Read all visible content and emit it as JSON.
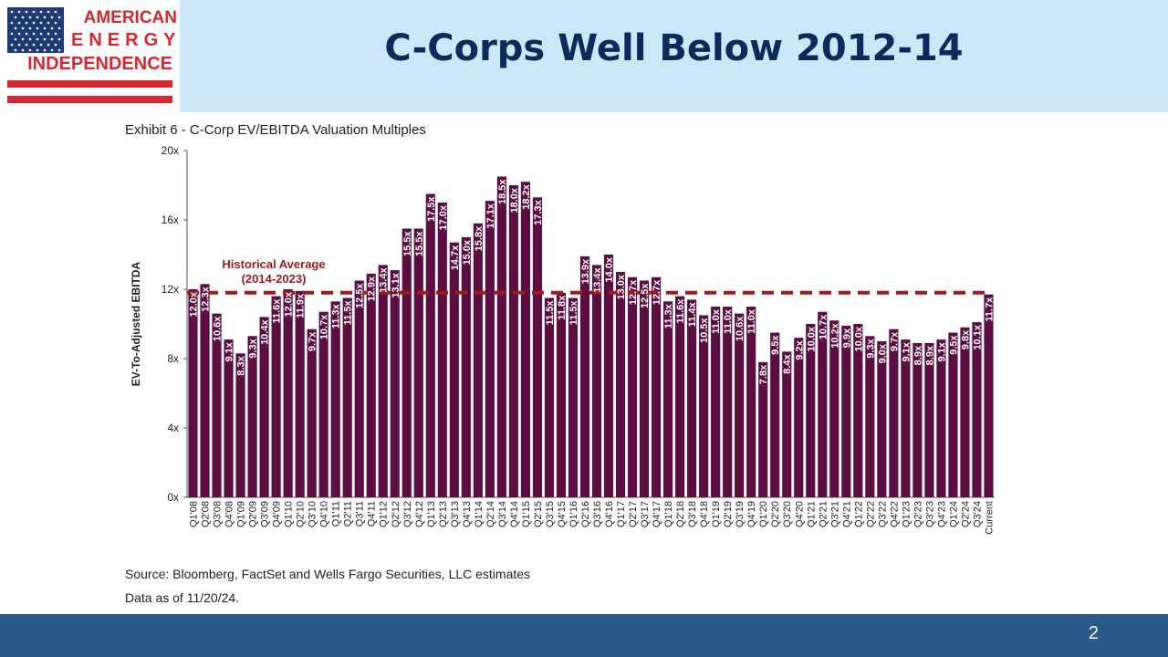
{
  "header": {
    "logo_lines": [
      "AMERICAN",
      "ENERGY",
      "INDEPENDENCE"
    ],
    "title": "C-Corps Well Below 2012-14"
  },
  "exhibit_title": "Exhibit 6 - C-Corp EV/EBITDA Valuation Multiples",
  "source": "Source: Bloomberg, FactSet and Wells Fargo Securities, LLC estimates",
  "as_of": "Data as of 11/20/24.",
  "page_number": "2",
  "colors": {
    "bar": "#5c0e43",
    "average_line": "#9e1b1b",
    "header_band": "#cce8f8",
    "title": "#0e2a5c",
    "footer": "#2a5a8a"
  },
  "chart_data": {
    "type": "bar",
    "ylabel": "EV-To-Adjusted EBITDA",
    "ylim": [
      0,
      20
    ],
    "yticks": [
      "0x",
      "4x",
      "8x",
      "12x",
      "16x",
      "20x"
    ],
    "average": {
      "value": 11.8,
      "label_lines": [
        "Historical Average",
        "(2014-2023)"
      ]
    },
    "categories": [
      "Q1'08",
      "Q2'08",
      "Q3'08",
      "Q4'08",
      "Q1'09",
      "Q2'09",
      "Q3'09",
      "Q4'09",
      "Q1'10",
      "Q2'10",
      "Q3'10",
      "Q4'10",
      "Q1'11",
      "Q2'11",
      "Q3'11",
      "Q4'11",
      "Q1'12",
      "Q2'12",
      "Q3'12",
      "Q4'12",
      "Q1'13",
      "Q2'13",
      "Q3'13",
      "Q4'13",
      "Q1'14",
      "Q2'14",
      "Q3'14",
      "Q4'14",
      "Q1'15",
      "Q2'15",
      "Q3'15",
      "Q4'15",
      "Q1'16",
      "Q2'16",
      "Q3'16",
      "Q4'16",
      "Q1'17",
      "Q2'17",
      "Q3'17",
      "Q4'17",
      "Q1'18",
      "Q2'18",
      "Q3'18",
      "Q4'18",
      "Q1'19",
      "Q2'19",
      "Q3'19",
      "Q4'19",
      "Q1'20",
      "Q2'20",
      "Q3'20",
      "Q4'20",
      "Q1'21",
      "Q2'21",
      "Q3'21",
      "Q4'21",
      "Q1'22",
      "Q2'22",
      "Q3'22",
      "Q4'22",
      "Q1'23",
      "Q2'23",
      "Q3'23",
      "Q4'23",
      "Q1'24",
      "Q2'24",
      "Q3'24",
      "Current"
    ],
    "values": [
      12.0,
      12.3,
      10.6,
      9.1,
      8.3,
      9.3,
      10.4,
      11.6,
      12.0,
      11.9,
      9.7,
      10.7,
      11.3,
      11.5,
      12.5,
      12.9,
      13.4,
      13.1,
      15.5,
      15.5,
      17.5,
      17.0,
      14.7,
      15.0,
      15.8,
      17.1,
      18.5,
      18.0,
      18.2,
      17.3,
      11.5,
      11.8,
      11.5,
      13.9,
      13.4,
      14.0,
      13.0,
      12.7,
      12.5,
      12.7,
      11.3,
      11.6,
      11.4,
      10.5,
      11.0,
      11.0,
      10.6,
      11.0,
      7.8,
      9.5,
      8.4,
      9.2,
      10.0,
      10.7,
      10.2,
      9.9,
      10.0,
      9.3,
      9.0,
      9.7,
      9.1,
      8.9,
      8.9,
      9.1,
      9.5,
      9.8,
      10.1,
      11.7
    ],
    "data_labels": [
      "12.0x",
      "12.3x",
      "10.6x",
      "9.1x",
      "8.3x",
      "9.3x",
      "10.4x",
      "11.6x",
      "12.0x",
      "11.9x",
      "9.7x",
      "10.7x",
      "11.3x",
      "11.5x",
      "12.5x",
      "12.9x",
      "13.4x",
      "13.1x",
      "15.5x",
      "15.5x",
      "17.5x",
      "17.0x",
      "14.7x",
      "15.0x",
      "15.8x",
      "17.1x",
      "18.5x",
      "18.0x",
      "18.2x",
      "17.3x",
      "11.5x",
      "11.8x",
      "11.5x",
      "13.9x",
      "13.4x",
      "14.0x",
      "13.0x",
      "12.7x",
      "12.5x",
      "12.7x",
      "11.3x",
      "11.6x",
      "11.4x",
      "10.5x",
      "11.0x",
      "11.0x",
      "10.6x",
      "11.0x",
      "7.8x",
      "9.5x",
      "8.4x",
      "9.2x",
      "10.0x",
      "10.7x",
      "10.2x",
      "9.9x",
      "10.0x",
      "9.3x",
      "9.0x",
      "9.7x",
      "9.1x",
      "8.9x",
      "8.9x",
      "9.1x",
      "9.5x",
      "9.8x",
      "10.1x",
      "11.7x"
    ]
  }
}
